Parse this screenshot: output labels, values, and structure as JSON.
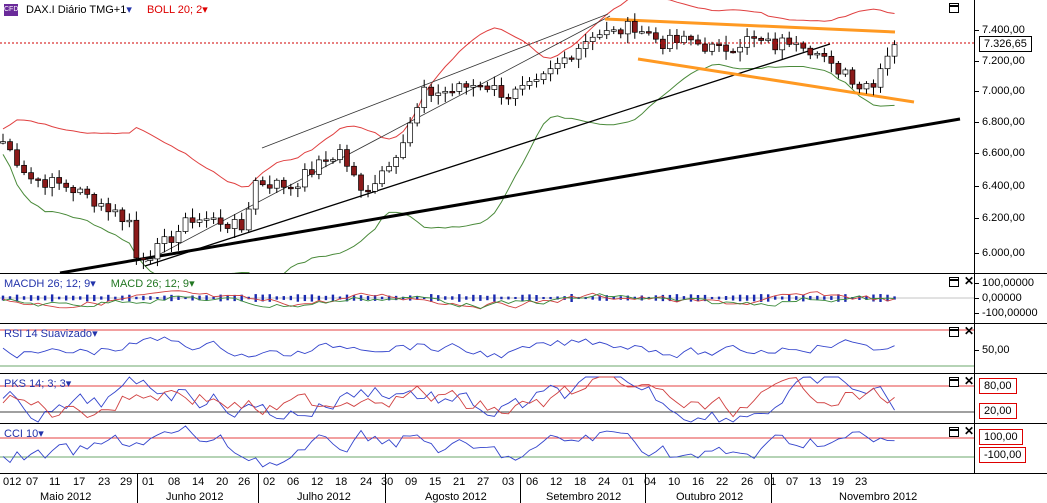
{
  "main_chart": {
    "symbol": "DAX.I Diário TMG+1",
    "indicator": "BOLL 20; 2",
    "last_price": "7.326,65",
    "price_ticks": [
      "7.400,00",
      "7.200,00",
      "7.000,00",
      "6.800,00",
      "6.600,00",
      "6.400,00",
      "6.200,00",
      "6.000,00"
    ],
    "colors": {
      "bull": "#ffffff",
      "bear": "#8b1a1a",
      "upper_band": "#e04040",
      "lower_band": "#4a8a3a",
      "channel": "#ff9922",
      "trend": "#000000",
      "price_line": "#d00000"
    }
  },
  "macd_panel": {
    "label1": "MACDH 26; 12; 9",
    "label2": "MACD 26; 12; 9",
    "ticks": [
      "100,00000",
      "0,00000",
      "-100,00000"
    ]
  },
  "rsi_panel": {
    "label": "RSI 14 Suavizado",
    "ticks": [
      "50,00"
    ]
  },
  "pks_panel": {
    "label": "PKS 14; 3; 3",
    "ticks": [
      "80,00",
      "20,00"
    ]
  },
  "cci_panel": {
    "label": "CCI 10",
    "ticks": [
      "100,00",
      "-100,00"
    ]
  },
  "date_axis": {
    "days": [
      "012",
      "07",
      "11",
      "17",
      "23",
      "29",
      "01",
      "08",
      "14",
      "20",
      "26",
      "02",
      "06",
      "12",
      "18",
      "24",
      "30",
      "09",
      "15",
      "21",
      "27",
      "03",
      "06",
      "12",
      "18",
      "24",
      "01",
      "04",
      "10",
      "16",
      "22",
      "26",
      "01",
      "07",
      "13",
      "19",
      "23"
    ],
    "months": [
      "Maio 2012",
      "Junho 2012",
      "Julho 2012",
      "Agosto 2012",
      "Setembro 2012",
      "Outubro 2012",
      "Novembro 2012"
    ]
  },
  "window_controls": {
    "restore_icon": "restore-icon",
    "close_icon": "close-icon",
    "close_glyph": "✕"
  }
}
